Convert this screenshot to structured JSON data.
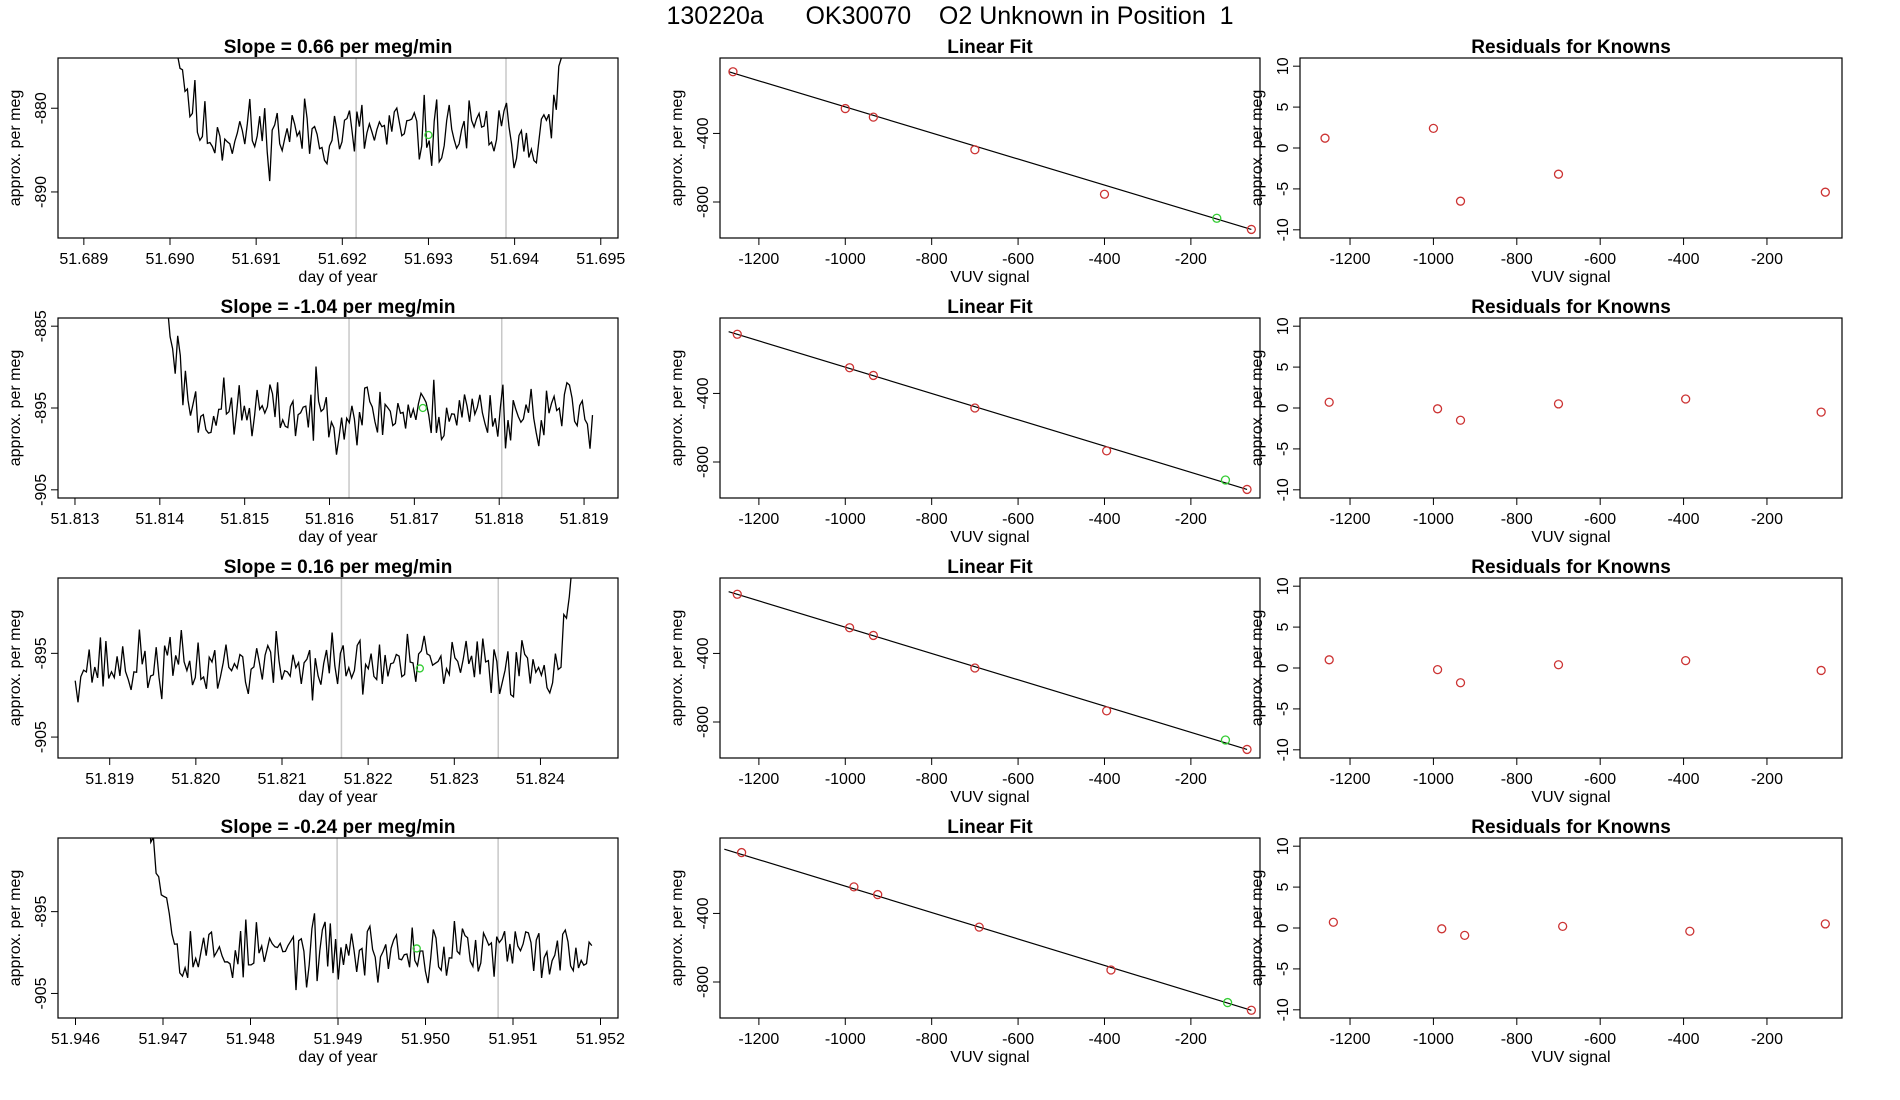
{
  "figure_title": "130220a      OK30070    O2 Unknown in Position  1",
  "colors": {
    "line": "#000000",
    "gridline": "#c8c8c8",
    "known_point": "#cc3333",
    "unknown_point": "#33cc33"
  },
  "chart_data": [
    {
      "type": "line",
      "row": 1,
      "title": "Slope =  0.66  per meg/min",
      "xlabel": "day of year",
      "ylabel": "approx. per meg",
      "xlim": [
        51.6887,
        51.6952
      ],
      "ylim": [
        -895.5,
        -874
      ],
      "xticks": [
        51.689,
        51.69,
        51.691,
        51.692,
        51.693,
        51.694,
        51.695
      ],
      "xtick_labels": [
        "51.689",
        "51.690",
        "51.691",
        "51.692",
        "51.693",
        "51.694",
        "51.695"
      ],
      "yticks": [
        -880,
        -890
      ],
      "ytick_labels": [
        "-880",
        "-890"
      ],
      "vlines": [
        51.69216,
        51.6939
      ],
      "x_start": 51.69,
      "x_end": 51.6946,
      "n_points": 160,
      "baseline": -883,
      "noise": 2.6,
      "seed": 11,
      "rise_start": true,
      "rise_end": true,
      "unknown_point": {
        "x": 51.693,
        "y": -883.2
      }
    },
    {
      "type": "scatter",
      "row": 1,
      "title": "Linear Fit",
      "xlabel": "VUV signal",
      "ylabel": "approx. per meg",
      "xlim": [
        -1290,
        -40
      ],
      "ylim": [
        -1010,
        40
      ],
      "xticks": [
        -1200,
        -1000,
        -800,
        -600,
        -400,
        -200
      ],
      "xtick_labels": [
        "-1200",
        "-1000",
        "-800",
        "-600",
        "-400",
        "-200"
      ],
      "yticks": [
        -400,
        -800
      ],
      "ytick_labels": [
        "-400",
        "-800"
      ],
      "fit_line": {
        "x": [
          -1270,
          -60
        ],
        "y": [
          -40,
          -960
        ]
      },
      "known_points": {
        "x": [
          -1260,
          -1000,
          -935,
          -700,
          -400,
          -60
        ],
        "y": [
          -40,
          -255,
          -305,
          -495,
          -755,
          -960
        ]
      },
      "unknown_point": {
        "x": -140,
        "y": -895
      }
    },
    {
      "type": "scatter",
      "row": 1,
      "title": "Residuals for Knowns",
      "xlabel": "VUV signal",
      "ylabel": "approx. per meg",
      "xlim": [
        -1320,
        -20
      ],
      "ylim": [
        -11,
        11
      ],
      "xticks": [
        -1200,
        -1000,
        -800,
        -600,
        -400,
        -200
      ],
      "xtick_labels": [
        "-1200",
        "-1000",
        "-800",
        "-600",
        "-400",
        "-200"
      ],
      "yticks": [
        10,
        5,
        0,
        -5,
        -10
      ],
      "ytick_labels": [
        "10",
        "5",
        "0",
        "-5",
        "-10"
      ],
      "residual_points": {
        "x": [
          -1260,
          -1000,
          -935,
          -700,
          -60
        ],
        "y": [
          1.2,
          2.4,
          -6.5,
          -3.2,
          -5.4
        ]
      }
    },
    {
      "type": "line",
      "row": 2,
      "title": "Slope =  -1.04  per meg/min",
      "xlabel": "day of year",
      "ylabel": "approx. per meg",
      "xlim": [
        51.8128,
        51.8194
      ],
      "ylim": [
        -906,
        -884
      ],
      "xticks": [
        51.813,
        51.814,
        51.815,
        51.816,
        51.817,
        51.818,
        51.819
      ],
      "xtick_labels": [
        "51.813",
        "51.814",
        "51.815",
        "51.816",
        "51.817",
        "51.818",
        "51.819"
      ],
      "yticks": [
        -885,
        -895,
        -905
      ],
      "ytick_labels": [
        "-885",
        "-895",
        "-905"
      ],
      "vlines": [
        51.81623,
        51.81803
      ],
      "x_start": 51.814,
      "x_end": 51.8191,
      "n_points": 170,
      "baseline": -895.5,
      "noise": 2.5,
      "seed": 23,
      "rise_start": true,
      "rise_end": false,
      "unknown_point": {
        "x": 51.8171,
        "y": -895
      }
    },
    {
      "type": "scatter",
      "row": 2,
      "title": "Linear Fit",
      "xlabel": "VUV signal",
      "ylabel": "approx. per meg",
      "xlim": [
        -1290,
        -40
      ],
      "ylim": [
        -1010,
        40
      ],
      "xticks": [
        -1200,
        -1000,
        -800,
        -600,
        -400,
        -200
      ],
      "xtick_labels": [
        "-1200",
        "-1000",
        "-800",
        "-600",
        "-400",
        "-200"
      ],
      "yticks": [
        -400,
        -800
      ],
      "ytick_labels": [
        "-400",
        "-800"
      ],
      "fit_line": {
        "x": [
          -1270,
          -70
        ],
        "y": [
          -40,
          -960
        ]
      },
      "known_points": {
        "x": [
          -1250,
          -990,
          -935,
          -700,
          -395,
          -70
        ],
        "y": [
          -55,
          -250,
          -295,
          -485,
          -735,
          -960
        ]
      },
      "unknown_point": {
        "x": -120,
        "y": -905
      }
    },
    {
      "type": "scatter",
      "row": 2,
      "title": "Residuals for Knowns",
      "xlabel": "VUV signal",
      "ylabel": "approx. per meg",
      "xlim": [
        -1320,
        -20
      ],
      "ylim": [
        -11,
        11
      ],
      "xticks": [
        -1200,
        -1000,
        -800,
        -600,
        -400,
        -200
      ],
      "xtick_labels": [
        "-1200",
        "-1000",
        "-800",
        "-600",
        "-400",
        "-200"
      ],
      "yticks": [
        10,
        5,
        0,
        -5,
        -10
      ],
      "ytick_labels": [
        "10",
        "5",
        "0",
        "-5",
        "-10"
      ],
      "residual_points": {
        "x": [
          -1250,
          -990,
          -935,
          -700,
          -395,
          -70
        ],
        "y": [
          0.7,
          -0.1,
          -1.5,
          0.5,
          1.1,
          -0.5
        ]
      }
    },
    {
      "type": "line",
      "row": 3,
      "title": "Slope =  0.16  per meg/min",
      "xlabel": "day of year",
      "ylabel": "approx. per meg",
      "xlim": [
        51.8184,
        51.8249
      ],
      "ylim": [
        -907.5,
        -886
      ],
      "xticks": [
        51.819,
        51.82,
        51.821,
        51.822,
        51.823,
        51.824
      ],
      "xtick_labels": [
        "51.819",
        "51.820",
        "51.821",
        "51.822",
        "51.823",
        "51.824"
      ],
      "yticks": [
        -895,
        -905
      ],
      "ytick_labels": [
        "-895",
        "-905"
      ],
      "vlines": [
        51.82169,
        51.82351
      ],
      "x_start": 51.8186,
      "x_end": 51.8244,
      "n_points": 180,
      "baseline": -896.5,
      "noise": 2.4,
      "seed": 37,
      "rise_start": false,
      "rise_end": true,
      "unknown_point": {
        "x": 51.8226,
        "y": -896.8
      }
    },
    {
      "type": "scatter",
      "row": 3,
      "title": "Linear Fit",
      "xlabel": "VUV signal",
      "ylabel": "approx. per meg",
      "xlim": [
        -1290,
        -40
      ],
      "ylim": [
        -1010,
        40
      ],
      "xticks": [
        -1200,
        -1000,
        -800,
        -600,
        -400,
        -200
      ],
      "xtick_labels": [
        "-1200",
        "-1000",
        "-800",
        "-600",
        "-400",
        "-200"
      ],
      "yticks": [
        -400,
        -800
      ],
      "ytick_labels": [
        "-400",
        "-800"
      ],
      "fit_line": {
        "x": [
          -1270,
          -70
        ],
        "y": [
          -40,
          -960
        ]
      },
      "known_points": {
        "x": [
          -1250,
          -990,
          -935,
          -700,
          -395,
          -70
        ],
        "y": [
          -55,
          -250,
          -295,
          -485,
          -735,
          -960
        ]
      },
      "unknown_point": {
        "x": -120,
        "y": -905
      }
    },
    {
      "type": "scatter",
      "row": 3,
      "title": "Residuals for Knowns",
      "xlabel": "VUV signal",
      "ylabel": "approx. per meg",
      "xlim": [
        -1320,
        -20
      ],
      "ylim": [
        -11,
        11
      ],
      "xticks": [
        -1200,
        -1000,
        -800,
        -600,
        -400,
        -200
      ],
      "xtick_labels": [
        "-1200",
        "-1000",
        "-800",
        "-600",
        "-400",
        "-200"
      ],
      "yticks": [
        10,
        5,
        0,
        -5,
        -10
      ],
      "ytick_labels": [
        "10",
        "5",
        "0",
        "-5",
        "-10"
      ],
      "residual_points": {
        "x": [
          -1250,
          -990,
          -935,
          -700,
          -395,
          -70
        ],
        "y": [
          1.0,
          -0.2,
          -1.8,
          0.4,
          0.9,
          -0.3
        ]
      }
    },
    {
      "type": "line",
      "row": 4,
      "title": "Slope =  -0.24  per meg/min",
      "xlabel": "day of year",
      "ylabel": "approx. per meg",
      "xlim": [
        51.9458,
        51.9522
      ],
      "ylim": [
        -908,
        -886
      ],
      "xticks": [
        51.946,
        51.947,
        51.948,
        51.949,
        51.95,
        51.951,
        51.952
      ],
      "xtick_labels": [
        "51.946",
        "51.947",
        "51.948",
        "51.949",
        "51.950",
        "51.951",
        "51.952"
      ],
      "yticks": [
        -895,
        -905
      ],
      "ytick_labels": [
        "-895",
        "-905"
      ],
      "vlines": [
        51.94899,
        51.95083
      ],
      "x_start": 51.9468,
      "x_end": 51.9519,
      "n_points": 170,
      "baseline": -900,
      "noise": 2.4,
      "seed": 53,
      "rise_start": true,
      "rise_end": false,
      "unknown_point": {
        "x": 51.9499,
        "y": -899.5
      }
    },
    {
      "type": "scatter",
      "row": 4,
      "title": "Linear Fit",
      "xlabel": "VUV signal",
      "ylabel": "approx. per meg",
      "xlim": [
        -1290,
        -40
      ],
      "ylim": [
        -1010,
        40
      ],
      "xticks": [
        -1200,
        -1000,
        -800,
        -600,
        -400,
        -200
      ],
      "xtick_labels": [
        "-1200",
        "-1000",
        "-800",
        "-600",
        "-400",
        "-200"
      ],
      "yticks": [
        -400,
        -800
      ],
      "ytick_labels": [
        "-400",
        "-800"
      ],
      "fit_line": {
        "x": [
          -1280,
          -60
        ],
        "y": [
          -25,
          -965
        ]
      },
      "known_points": {
        "x": [
          -1240,
          -980,
          -925,
          -690,
          -385,
          -60
        ],
        "y": [
          -45,
          -245,
          -290,
          -480,
          -730,
          -965
        ]
      },
      "unknown_point": {
        "x": -115,
        "y": -920
      }
    },
    {
      "type": "scatter",
      "row": 4,
      "title": "Residuals for Knowns",
      "xlabel": "VUV signal",
      "ylabel": "approx. per meg",
      "xlim": [
        -1320,
        -20
      ],
      "ylim": [
        -11,
        11
      ],
      "xticks": [
        -1200,
        -1000,
        -800,
        -600,
        -400,
        -200
      ],
      "xtick_labels": [
        "-1200",
        "-1000",
        "-800",
        "-600",
        "-400",
        "-200"
      ],
      "yticks": [
        10,
        5,
        0,
        -5,
        -10
      ],
      "ytick_labels": [
        "10",
        "5",
        "0",
        "-5",
        "-10"
      ],
      "residual_points": {
        "x": [
          -1240,
          -980,
          -925,
          -690,
          -385,
          -60
        ],
        "y": [
          0.7,
          -0.1,
          -0.9,
          0.2,
          -0.4,
          0.5
        ]
      }
    }
  ]
}
